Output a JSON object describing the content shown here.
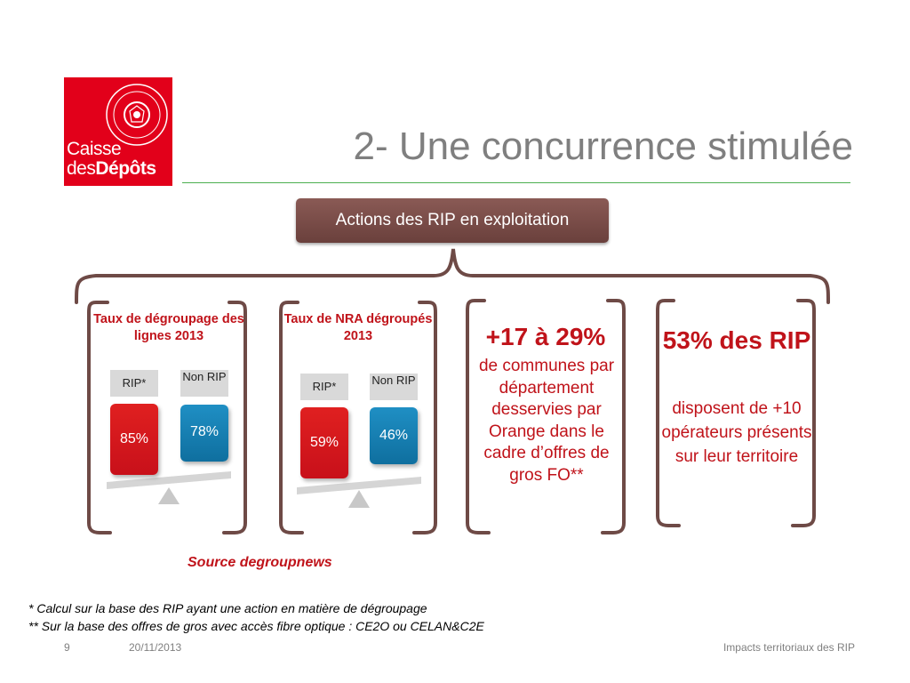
{
  "logo": {
    "line1": "Caisse",
    "line2_prefix": "des",
    "line2_bold": "Dépôts"
  },
  "title": "2- Une concurrence stimulée",
  "actions_label": "Actions des RIP en exploitation",
  "panels": {
    "degroupage": {
      "title": "Taux de dégroupage des lignes 2013",
      "left_label": "RIP*",
      "right_label": "Non RIP",
      "left_value": "85%",
      "right_value": "78%"
    },
    "nra": {
      "title": "Taux de NRA dégroupés 2013",
      "left_label": "RIP*",
      "right_label": "Non RIP",
      "left_value": "59%",
      "right_value": "46%"
    },
    "communes": {
      "headline": "+17 à 29%",
      "body": "de communes par département desservies par Orange dans le cadre d’offres de gros FO**"
    },
    "operateurs": {
      "headline": "53% des RIP",
      "body": "disposent de +10 opérateurs présents sur leur territoire"
    }
  },
  "source": "Source degroupnews",
  "footnotes": [
    "* Calcul sur la base des RIP ayant une action en matière de dégroupage",
    "** Sur la base des offres de gros avec accès fibre optique : CE2O ou CELAN&C2E"
  ],
  "footer": {
    "page_number": "9",
    "date": "20/11/2013",
    "right_text": "Impacts territoriaux des RIP"
  },
  "colors": {
    "brand_red": "#e2001a",
    "highlight_red": "#c0131a",
    "bar_blue": "#1a86b9",
    "bracket_brown": "#6e4a46",
    "title_grey": "#7f7f7f",
    "rule_green": "#4caf50"
  }
}
